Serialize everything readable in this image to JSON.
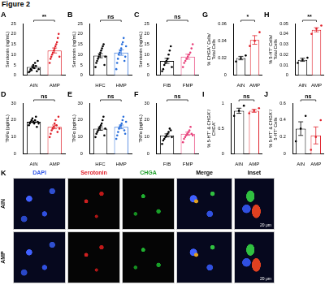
{
  "title": "Figure 2",
  "chart_data": [
    {
      "panel": "A",
      "type": "bar",
      "y_label": [
        "Serotonin (ng/mL)"
      ],
      "categories": [
        "AIN",
        "AMP"
      ],
      "values": [
        4,
        12
      ],
      "errors": [
        0.6,
        1.2
      ],
      "points": [
        [
          1.5,
          2,
          3,
          2.5,
          4,
          5,
          3.5,
          6,
          4.5,
          2,
          7,
          3
        ],
        [
          6,
          8,
          9,
          10,
          11,
          12,
          13,
          14,
          15,
          16,
          18,
          20,
          9
        ]
      ],
      "colors": [
        "#000000",
        "#e0202a"
      ],
      "annotation": "**",
      "ylim": [
        0,
        25
      ],
      "yticks": [
        0,
        5,
        10,
        15,
        20,
        25
      ],
      "grid": false
    },
    {
      "panel": "B",
      "type": "bar",
      "y_label": [
        "Serotonin (ng/mL)"
      ],
      "categories": [
        "HFC",
        "HMP"
      ],
      "values": [
        9.5,
        11
      ],
      "errors": [
        1,
        1.3
      ],
      "points": [
        [
          4,
          6,
          7,
          8,
          9,
          10,
          11,
          12,
          13,
          14,
          15,
          5,
          9
        ],
        [
          3,
          6,
          8,
          10,
          11,
          12,
          13,
          15,
          16,
          18,
          7,
          9,
          14
        ]
      ],
      "colors": [
        "#000000",
        "#2a6fdb"
      ],
      "annotation": "ns",
      "ylim": [
        0,
        25
      ],
      "yticks": [
        0,
        5,
        10,
        15,
        20,
        25
      ],
      "grid": false
    },
    {
      "panel": "C",
      "type": "bar",
      "y_label": [
        "Serotonin (ng/mL)"
      ],
      "categories": [
        "FIB",
        "FMP"
      ],
      "values": [
        7,
        9
      ],
      "errors": [
        1.2,
        1.2
      ],
      "points": [
        [
          2,
          3,
          5,
          6,
          7,
          8,
          10,
          12,
          14,
          4
        ],
        [
          4,
          6,
          7,
          8,
          9,
          10,
          11,
          13,
          15
        ]
      ],
      "colors": [
        "#000000",
        "#e8407a"
      ],
      "annotation": "ns",
      "ylim": [
        0,
        25
      ],
      "yticks": [
        0,
        5,
        10,
        15,
        20,
        25
      ],
      "grid": false
    },
    {
      "panel": "D",
      "type": "bar",
      "y_label": [
        "TNFα (pg/mL)"
      ],
      "categories": [
        "AIN",
        "AMP"
      ],
      "values": [
        19,
        16
      ],
      "errors": [
        0.5,
        1.1
      ],
      "points": [
        [
          17,
          18,
          19,
          20,
          21,
          19,
          18,
          20,
          22,
          16,
          19,
          18
        ],
        [
          10,
          12,
          14,
          15,
          16,
          18,
          20,
          17,
          13,
          22,
          15
        ]
      ],
      "colors": [
        "#000000",
        "#e0202a"
      ],
      "annotation": "ns",
      "ylim": [
        0,
        30
      ],
      "yticks": [
        0,
        10,
        20,
        30
      ],
      "grid": false
    },
    {
      "panel": "E",
      "type": "bar",
      "y_label": [
        "TNFα (pg/mL)"
      ],
      "categories": [
        "HFC",
        "HMP"
      ],
      "values": [
        15,
        16
      ],
      "errors": [
        1,
        1.1
      ],
      "points": [
        [
          10,
          12,
          13,
          14,
          15,
          16,
          17,
          18,
          20,
          22,
          11,
          15
        ],
        [
          9,
          11,
          13,
          15,
          16,
          17,
          18,
          20,
          22,
          14,
          12,
          19
        ]
      ],
      "colors": [
        "#000000",
        "#2a6fdb"
      ],
      "annotation": "ns",
      "ylim": [
        0,
        30
      ],
      "yticks": [
        0,
        10,
        20,
        30
      ],
      "grid": false
    },
    {
      "panel": "F",
      "type": "bar",
      "y_label": [
        "TNFα (pg/mL)"
      ],
      "categories": [
        "FIB",
        "FMP"
      ],
      "values": [
        11,
        12
      ],
      "errors": [
        0.9,
        0.9
      ],
      "points": [
        [
          6,
          8,
          9,
          10,
          11,
          12,
          13,
          15,
          14,
          10
        ],
        [
          7,
          9,
          10,
          11,
          12,
          13,
          14,
          16,
          12,
          11
        ]
      ],
      "colors": [
        "#000000",
        "#e8407a"
      ],
      "annotation": "ns",
      "ylim": [
        0,
        30
      ],
      "yticks": [
        0,
        10,
        20,
        30
      ],
      "grid": false
    },
    {
      "panel": "G",
      "type": "bar",
      "y_label": [
        "% CHGA⁺ Cells/",
        "Total Cells"
      ],
      "categories": [
        "AIN",
        "AMP"
      ],
      "values": [
        0.02,
        0.041
      ],
      "errors": [
        0.002,
        0.005
      ],
      "points": [
        [
          0.016,
          0.02,
          0.023
        ],
        [
          0.034,
          0.04,
          0.05
        ]
      ],
      "colors": [
        "#000000",
        "#e0202a"
      ],
      "annotation": "*",
      "ylim": [
        0,
        0.06
      ],
      "yticks": [
        0,
        0.02,
        0.04,
        0.06
      ],
      "grid": false
    },
    {
      "panel": "H",
      "type": "bar",
      "y_label": [
        "% 5-HT⁺ Cells/",
        "Total Cells"
      ],
      "categories": [
        "AIN",
        "AMP"
      ],
      "values": [
        0.015,
        0.044
      ],
      "errors": [
        0.0015,
        0.002
      ],
      "points": [
        [
          0.012,
          0.015,
          0.017
        ],
        [
          0.04,
          0.045,
          0.048
        ]
      ],
      "colors": [
        "#000000",
        "#e0202a"
      ],
      "annotation": "**",
      "ylim": [
        0,
        0.05
      ],
      "yticks": [
        0,
        0.01,
        0.02,
        0.03,
        0.04,
        0.05
      ],
      "grid": false
    },
    {
      "panel": "I",
      "type": "bar",
      "y_label": [
        "% 5-HT⁺ & CHGA⁺/",
        "CHGA⁺"
      ],
      "categories": [
        "AIN",
        "AMP"
      ],
      "values": [
        0.85,
        0.85
      ],
      "errors": [
        0.05,
        0.03
      ],
      "points": [
        [
          0.75,
          0.85,
          0.95
        ],
        [
          0.8,
          0.85,
          0.9
        ]
      ],
      "colors": [
        "#000000",
        "#e0202a"
      ],
      "annotation": "ns",
      "ylim": [
        0,
        1
      ],
      "yticks": [
        0,
        0.5,
        1
      ],
      "grid": false
    },
    {
      "panel": "J",
      "type": "bar",
      "y_label": [
        "% 5-HT⁺ & CHGA⁻/",
        "5-HT⁺ Cells"
      ],
      "categories": [
        "AIN",
        "AMP"
      ],
      "values": [
        0.3,
        0.22
      ],
      "errors": [
        0.08,
        0.1
      ],
      "points": [
        [
          0.15,
          0.3,
          0.45
        ],
        [
          0.05,
          0.2,
          0.4
        ]
      ],
      "colors": [
        "#000000",
        "#e0202a"
      ],
      "annotation": "ns",
      "ylim": [
        0,
        0.6
      ],
      "yticks": [
        0,
        0.2,
        0.4,
        0.6
      ],
      "grid": false
    }
  ],
  "panel_k": {
    "label": "K",
    "rows": [
      "AIN",
      "AMP"
    ],
    "columns": [
      {
        "name": "DAPI",
        "color": "#2f55e8"
      },
      {
        "name": "Serotonin",
        "color": "#e0202a"
      },
      {
        "name": "CHGA",
        "color": "#1fa02a"
      },
      {
        "name": "Merge",
        "color": "#000000"
      },
      {
        "name": "Inset",
        "color": "#000000"
      }
    ],
    "scale_bar": "20 μm"
  }
}
